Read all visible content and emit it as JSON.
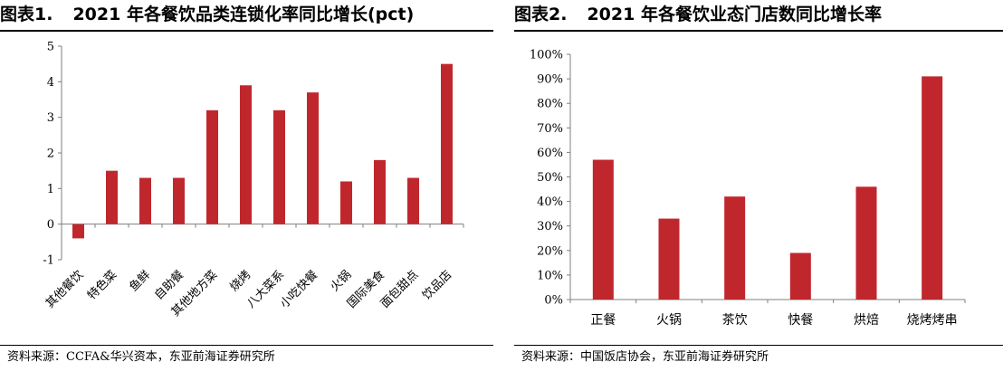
{
  "figures": [
    {
      "label": "图表1.",
      "title": "2021 年各餐饮品类连锁化率同比增长(pct)",
      "source": "资料来源：CCFA&华兴资本，东亚前海证券研究所"
    },
    {
      "label": "图表2.",
      "title": "2021 年各餐饮业态门店数同比增长率",
      "source": "资料来源：中国饭店协会，东亚前海证券研究所"
    }
  ],
  "colors": {
    "bar": "#c0272d",
    "axis": "#7f7f7f"
  },
  "chart_data": [
    {
      "type": "bar",
      "title": "2021 年各餐饮品类连锁化率同比增长(pct)",
      "xlabel": "",
      "ylabel": "",
      "categories": [
        "其他餐饮",
        "特色菜",
        "鱼鲜",
        "自助餐",
        "其他地方菜",
        "烧烤",
        "八大菜系",
        "小吃快餐",
        "火锅",
        "国际美食",
        "面包甜点",
        "饮品店"
      ],
      "values": [
        -0.4,
        1.5,
        1.3,
        1.3,
        3.2,
        3.9,
        3.2,
        3.7,
        1.2,
        1.8,
        1.3,
        4.5
      ],
      "ylim": [
        -1,
        5
      ],
      "yticks": [
        -1,
        0,
        1,
        2,
        3,
        4,
        5
      ],
      "ytick_labels": [
        "-1",
        "0",
        "1",
        "2",
        "3",
        "4",
        "5"
      ],
      "grid": false,
      "legend": "none"
    },
    {
      "type": "bar",
      "title": "2021 年各餐饮业态门店数同比增长率",
      "xlabel": "",
      "ylabel": "",
      "categories": [
        "正餐",
        "火锅",
        "茶饮",
        "快餐",
        "烘焙",
        "烧烤烤串"
      ],
      "values": [
        57,
        33,
        42,
        19,
        46,
        91
      ],
      "ylim": [
        0,
        100
      ],
      "yticks": [
        0,
        10,
        20,
        30,
        40,
        50,
        60,
        70,
        80,
        90,
        100
      ],
      "ytick_labels": [
        "0%",
        "10%",
        "20%",
        "30%",
        "40%",
        "50%",
        "60%",
        "70%",
        "80%",
        "90%",
        "100%"
      ],
      "grid": false,
      "legend": "none"
    }
  ]
}
